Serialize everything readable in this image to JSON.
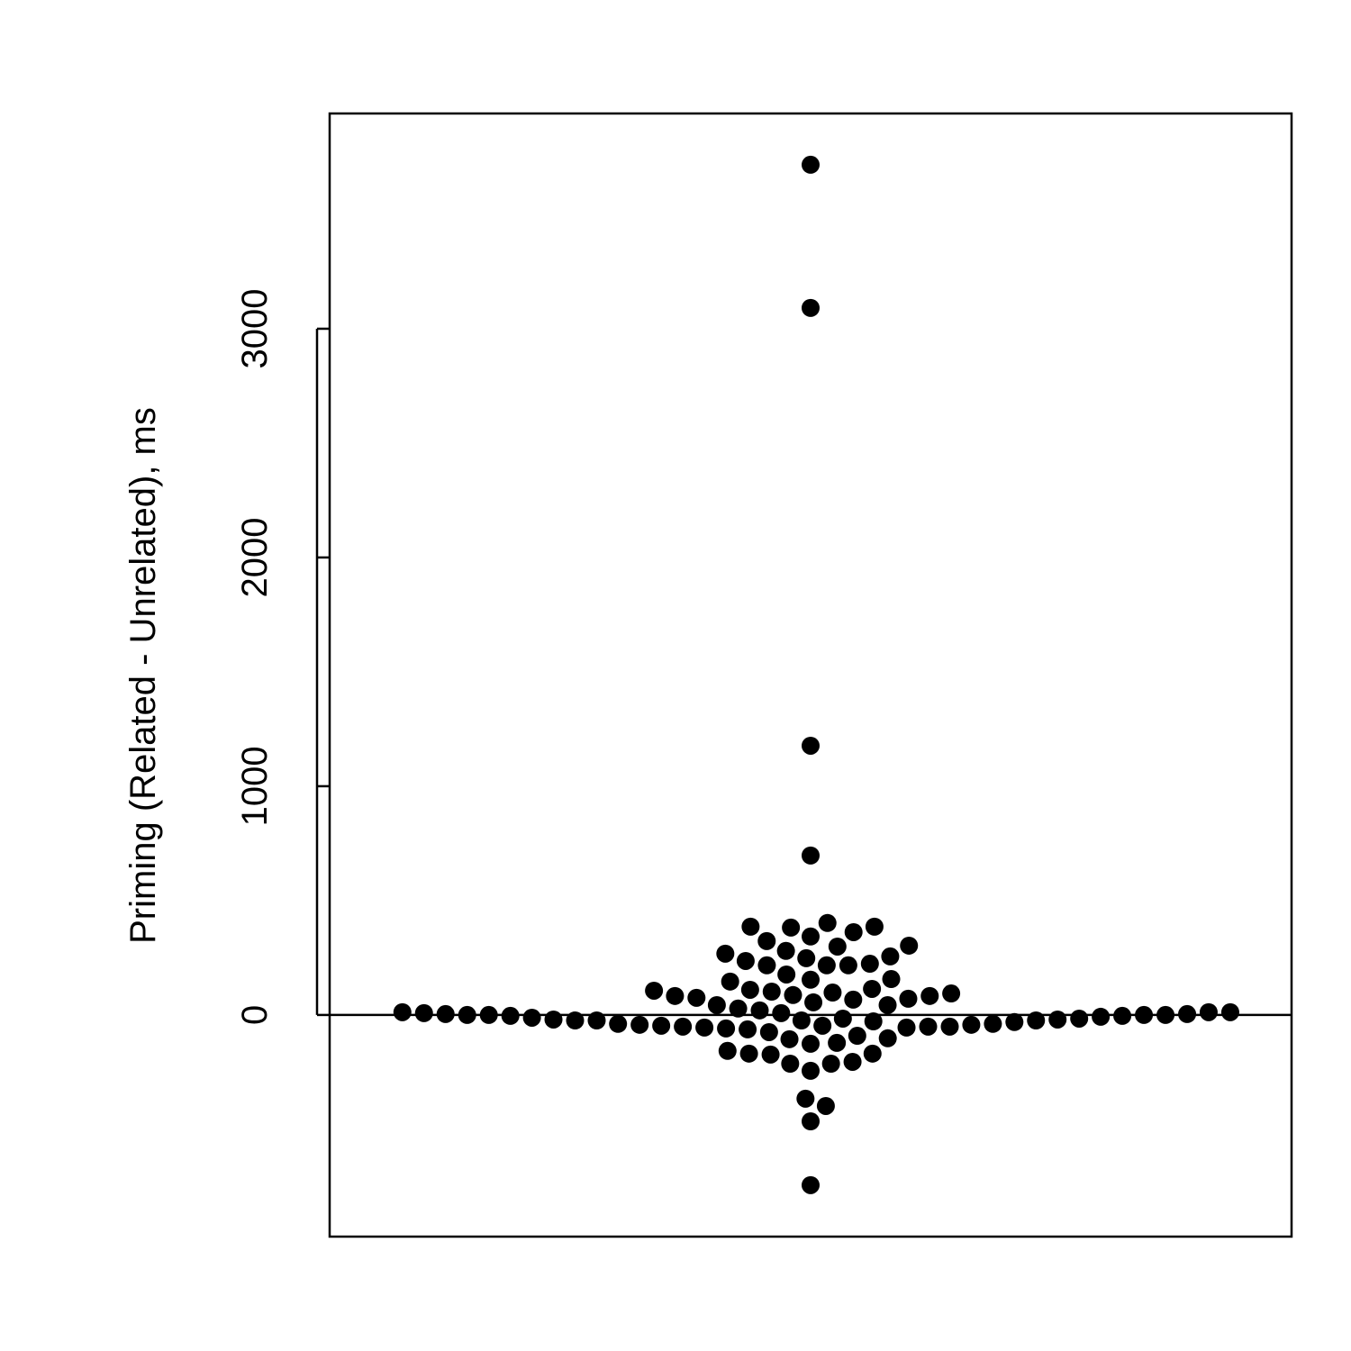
{
  "chart_data": {
    "type": "beeswarm",
    "y_label": "Priming (Related - Unrelated), ms",
    "color": "#000000",
    "ylim": [
      -969,
      3941
    ],
    "yticks": [
      0,
      1000,
      2000,
      3000
    ],
    "reference_line": 0,
    "values": [
      3717,
      3091,
      1177,
      697,
      -744,
      -465,
      -366,
      -398,
      386,
      382,
      362,
      402,
      386,
      299,
      323,
      343,
      303,
      256,
      280,
      236,
      248,
      268,
      224,
      217,
      217,
      217,
      154,
      177,
      146,
      157,
      114,
      98,
      83,
      102,
      87,
      71,
      94,
      110,
      106,
      83,
      75,
      43,
      20,
      55,
      67,
      43,
      28,
      0,
      4,
      -16,
      -20,
      -39,
      -39,
      -75,
      -102,
      -106,
      -126,
      -122,
      -91,
      -63,
      -169,
      -205,
      -213,
      -244,
      -213,
      -173,
      -169,
      -157,
      12,
      12,
      8,
      0,
      0,
      -4,
      -12,
      -20,
      -24,
      -24,
      -31,
      -43,
      -47,
      -51,
      -55,
      -59,
      12,
      8,
      4,
      0,
      -4,
      -8,
      -16,
      -24,
      -24,
      -28,
      -43,
      -47,
      -51,
      -51,
      -55
    ]
  }
}
